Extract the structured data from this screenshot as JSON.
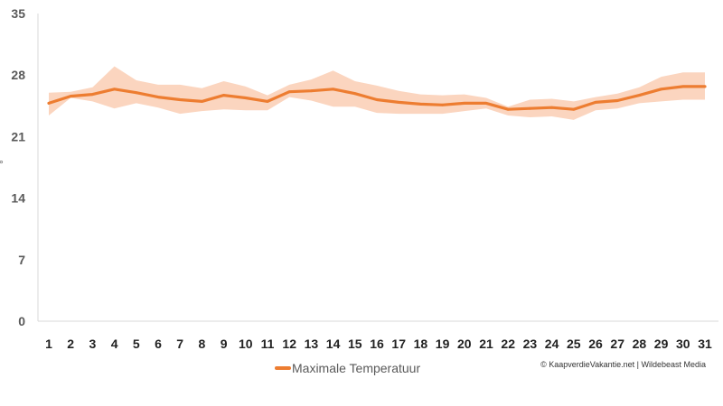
{
  "chart_data": {
    "type": "line",
    "title": "",
    "xlabel": "",
    "ylabel": "°",
    "ylim": [
      0,
      35
    ],
    "yticks": [
      0,
      7,
      14,
      21,
      28,
      35
    ],
    "x": [
      1,
      2,
      3,
      4,
      5,
      6,
      7,
      8,
      9,
      10,
      11,
      12,
      13,
      14,
      15,
      16,
      17,
      18,
      19,
      20,
      21,
      22,
      23,
      24,
      25,
      26,
      27,
      28,
      29,
      30,
      31
    ],
    "series": [
      {
        "name": "Maximale Temperatuur",
        "color": "#ed7d31",
        "values": [
          24.8,
          25.6,
          25.8,
          26.4,
          26.0,
          25.5,
          25.2,
          25.0,
          25.7,
          25.4,
          25.0,
          26.1,
          26.2,
          26.4,
          25.9,
          25.2,
          24.9,
          24.7,
          24.6,
          24.8,
          24.8,
          24.1,
          24.2,
          24.3,
          24.1,
          24.9,
          25.1,
          25.7,
          26.4,
          26.7,
          26.7
        ],
        "band_upper": [
          26.0,
          26.1,
          26.6,
          29.0,
          27.4,
          26.9,
          26.9,
          26.5,
          27.3,
          26.7,
          25.7,
          26.9,
          27.5,
          28.5,
          27.3,
          26.8,
          26.2,
          25.8,
          25.7,
          25.8,
          25.4,
          24.4,
          25.2,
          25.3,
          25.0,
          25.5,
          25.9,
          26.6,
          27.8,
          28.3,
          28.3
        ],
        "band_lower": [
          23.4,
          25.4,
          25.0,
          24.2,
          24.8,
          24.3,
          23.6,
          23.9,
          24.1,
          24.0,
          24.0,
          25.5,
          25.1,
          24.4,
          24.4,
          23.7,
          23.6,
          23.6,
          23.6,
          23.9,
          24.2,
          23.4,
          23.2,
          23.3,
          22.9,
          24.0,
          24.2,
          24.8,
          25.0,
          25.2,
          25.2
        ],
        "band_color": "#fbd5bf"
      }
    ],
    "grid": false,
    "legend_position": "bottom"
  },
  "credit": "© KaapverdieVakantie.net | Wildebeast Media"
}
